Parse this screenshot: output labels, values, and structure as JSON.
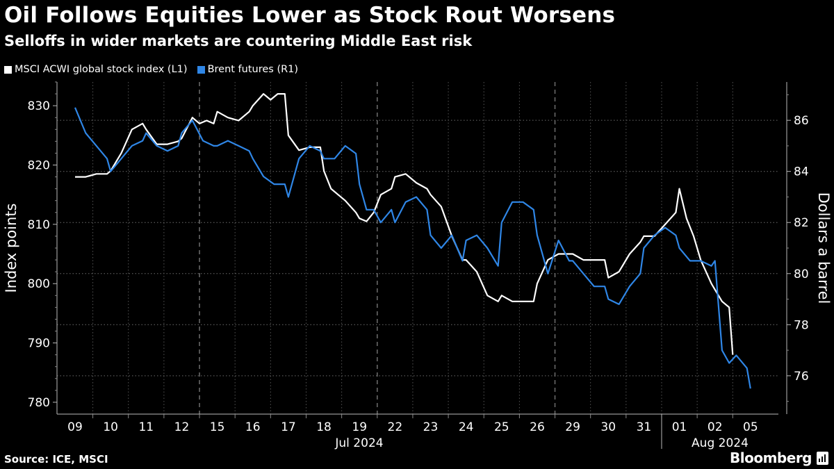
{
  "header": {
    "title": "Oil Follows Equities Lower as Stock Rout Worsens",
    "subtitle": "Selloffs in wider markets are countering Middle East risk"
  },
  "legend": [
    {
      "label": "MSCI ACWI global stock index (L1)",
      "color": "#ffffff"
    },
    {
      "label": "Brent futures (R1)",
      "color": "#2f86e6"
    }
  ],
  "footer": {
    "source": "Source: ICE, MSCI",
    "brand": "Bloomberg"
  },
  "chart_data": {
    "type": "line",
    "title": "Oil Follows Equities Lower as Stock Rout Worsens",
    "subtitle": "Selloffs in wider markets are countering Middle East risk",
    "ylabel_left": "Index points",
    "ylabel_right": "Dollars a barrel",
    "ylim_left": [
      778,
      834
    ],
    "ylim_right": [
      74.5,
      87.5
    ],
    "yticks_left": [
      780,
      790,
      800,
      810,
      820,
      830
    ],
    "yticks_right": [
      76,
      78,
      80,
      82,
      84,
      86
    ],
    "x_tick_labels": [
      "09",
      "10",
      "11",
      "12",
      "15",
      "16",
      "17",
      "18",
      "19",
      "22",
      "23",
      "24",
      "25",
      "26",
      "29",
      "30",
      "31",
      "01",
      "02",
      "05"
    ],
    "month_labels": [
      {
        "label": "Jul 2024",
        "start_index": 0,
        "end_index": 16
      },
      {
        "label": "Aug 2024",
        "start_index": 17,
        "end_index": 19
      }
    ],
    "grid": true,
    "legend_position": "top-left",
    "series": [
      {
        "name": "MSCI ACWI global stock index (L1)",
        "axis": "left",
        "color": "#ffffff",
        "x": [
          0,
          0.3,
          0.6,
          0.9,
          1.0,
          1.3,
          1.6,
          1.9,
          2.0,
          2.3,
          2.6,
          2.9,
          3.0,
          3.3,
          3.5,
          3.7,
          3.9,
          4.0,
          4.3,
          4.6,
          4.9,
          5.0,
          5.3,
          5.5,
          5.7,
          5.9,
          6.0,
          6.3,
          6.6,
          6.9,
          7.0,
          7.2,
          7.4,
          7.6,
          7.9,
          8.0,
          8.2,
          8.4,
          8.6,
          8.9,
          9.0,
          9.3,
          9.6,
          9.9,
          10.0,
          10.3,
          10.6,
          10.9,
          11.0,
          11.3,
          11.6,
          11.9,
          12.0,
          12.3,
          12.5,
          12.7,
          12.9,
          13.0,
          13.3,
          13.6,
          13.9,
          14.0,
          14.3,
          14.6,
          14.9,
          15.0,
          15.3,
          15.6,
          15.9,
          16.0,
          16.3,
          16.6,
          16.9,
          17.0,
          17.2,
          17.4,
          17.6,
          17.9,
          18.0,
          18.2,
          18.4,
          18.5
        ],
        "values": [
          818,
          818,
          818.5,
          818.5,
          819,
          822,
          826,
          827,
          826,
          823.5,
          823.5,
          824,
          824.5,
          828,
          827,
          827.5,
          827,
          829,
          828,
          827.5,
          829,
          830,
          832,
          831,
          832,
          832,
          825,
          822.5,
          823,
          823,
          819,
          816,
          815,
          814,
          812,
          811,
          810.5,
          812,
          815,
          816,
          818,
          818.5,
          817,
          816,
          815,
          813,
          808,
          804,
          804,
          802,
          798,
          797,
          798,
          797,
          797,
          797,
          797,
          800,
          804,
          805,
          805,
          805,
          804,
          804,
          804,
          801,
          802,
          805,
          807,
          808,
          808,
          810,
          812,
          816,
          811,
          808,
          804,
          800,
          799,
          797,
          796,
          788
        ]
      },
      {
        "name": "Brent futures (R1)",
        "axis": "right",
        "color": "#2f86e6",
        "x": [
          0,
          0.3,
          0.6,
          0.9,
          1.0,
          1.3,
          1.6,
          1.9,
          2.0,
          2.3,
          2.6,
          2.9,
          3.0,
          3.3,
          3.6,
          3.9,
          4.0,
          4.3,
          4.6,
          4.9,
          5.0,
          5.3,
          5.6,
          5.9,
          6.0,
          6.3,
          6.6,
          6.9,
          7.0,
          7.3,
          7.6,
          7.9,
          8.0,
          8.2,
          8.4,
          8.6,
          8.9,
          9.0,
          9.3,
          9.6,
          9.9,
          10.0,
          10.3,
          10.6,
          10.9,
          11.0,
          11.3,
          11.6,
          11.9,
          12.0,
          12.3,
          12.6,
          12.9,
          13.0,
          13.3,
          13.6,
          13.9,
          14.0,
          14.3,
          14.6,
          14.9,
          15.0,
          15.3,
          15.6,
          15.9,
          16.0,
          16.3,
          16.6,
          16.9,
          17.0,
          17.3,
          17.6,
          17.9,
          18.0,
          18.2,
          18.4,
          18.6,
          18.9,
          19.0
        ],
        "values": [
          86.5,
          85.5,
          85,
          84.5,
          84,
          84.5,
          85,
          85.2,
          85.5,
          85,
          84.8,
          85,
          85.5,
          86,
          85.2,
          85,
          85,
          85.2,
          85,
          84.8,
          84.5,
          83.8,
          83.5,
          83.5,
          83,
          84.5,
          85,
          84.8,
          84.5,
          84.5,
          85,
          84.7,
          83.5,
          82.5,
          82.5,
          82,
          82.5,
          82,
          82.8,
          83,
          82.5,
          81.5,
          81,
          81.5,
          80.5,
          81.3,
          81.5,
          81,
          80.3,
          82,
          82.8,
          82.8,
          82.5,
          81.5,
          80,
          81.3,
          80.5,
          80.5,
          80,
          79.5,
          79.5,
          79,
          78.8,
          79.5,
          80,
          81,
          81.5,
          81.8,
          81.5,
          81,
          80.5,
          80.5,
          80.3,
          80.5,
          77,
          76.5,
          76.8,
          76.3,
          75.5
        ]
      }
    ]
  }
}
